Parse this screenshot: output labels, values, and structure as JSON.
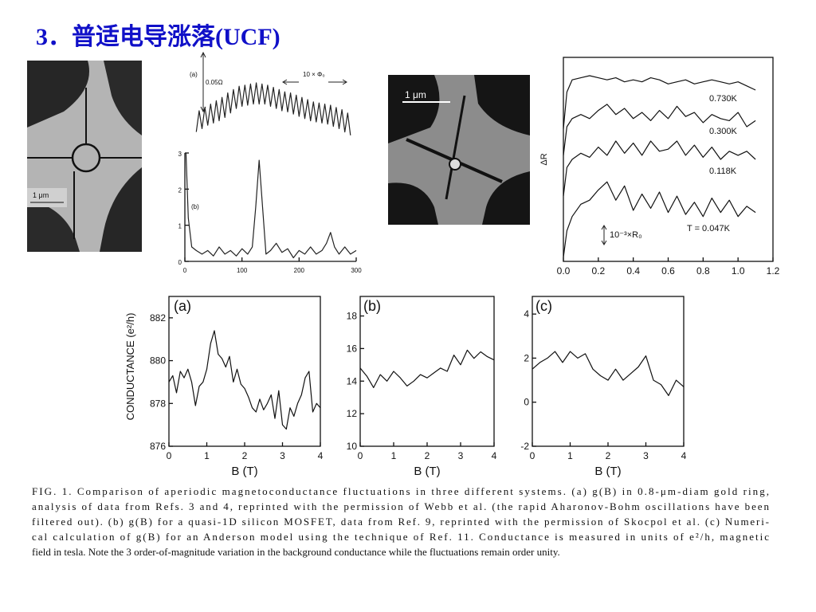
{
  "title": "3．普适电导涨落(UCF)",
  "photos": {
    "left_scale": "1 μm",
    "middle_scale": "1 μm"
  },
  "caption": [
    "FIG. 1.  Comparison of aperiodic magnetoconductance fluctuations in three different systems.  (a) g(B) in 0.8-μm-diam gold ring,",
    "analysis of data from Refs. 3 and 4, reprinted with the permission of Webb et al. (the rapid Aharonov-Bohm oscillations have been",
    "filtered out).  (b) g(B) for a quasi-1D silicon MOSFET, data from Ref. 9, reprinted with the permission of Skocpol et al.  (c) Numeri-",
    "cal calculation of g(B) for an Anderson model using the technique of Ref. 11.  Conductance is measured in units of e²/h, magnetic",
    "field in tesla.  Note the 3 order-of-magnitude variation in the background conductance while the fluctuations remain order unity."
  ],
  "chart_data": [
    {
      "type": "line",
      "title": "(a)",
      "annotations": [
        "0.05Ω",
        "10 × Φ₀"
      ],
      "color": "#222",
      "xlim": [
        0,
        300
      ],
      "ylim": [
        0,
        10
      ],
      "x": [
        20,
        25,
        30,
        35,
        40,
        45,
        50,
        55,
        60,
        65,
        70,
        75,
        80,
        85,
        90,
        95,
        100,
        105,
        110,
        115,
        120,
        125,
        130,
        135,
        140,
        145,
        150,
        155,
        160,
        165,
        170,
        175,
        180,
        185,
        190,
        195,
        200,
        205,
        210,
        215,
        220,
        225,
        230,
        235,
        240,
        245,
        250,
        255,
        260,
        265,
        270,
        275,
        280,
        285,
        290
      ],
      "values": [
        4.6,
        6.5,
        4.9,
        6.8,
        5.2,
        7.1,
        5.4,
        7.4,
        5.6,
        7.7,
        5.9,
        8.1,
        6.3,
        8.4,
        6.7,
        8.7,
        6.9,
        8.8,
        7.0,
        8.9,
        7.1,
        9.0,
        7.1,
        8.9,
        7.1,
        8.8,
        6.9,
        8.6,
        6.7,
        8.4,
        6.5,
        8.2,
        6.4,
        8.1,
        6.2,
        7.9,
        6.0,
        7.7,
        5.8,
        7.5,
        5.6,
        7.3,
        5.5,
        7.2,
        5.4,
        7.1,
        5.3,
        7.0,
        5.1,
        6.8,
        4.9,
        6.6,
        4.6,
        6.3,
        4.3
      ]
    },
    {
      "type": "line",
      "title": "(b)",
      "color": "#222",
      "xlim": [
        0,
        300
      ],
      "xticks": [
        0,
        100,
        200,
        300
      ],
      "ylim": [
        0,
        3
      ],
      "yticks": [
        0,
        1,
        2,
        3
      ],
      "x": [
        2,
        6,
        12,
        20,
        30,
        40,
        50,
        60,
        70,
        80,
        90,
        100,
        110,
        118,
        124,
        130,
        136,
        142,
        150,
        160,
        170,
        180,
        190,
        200,
        210,
        220,
        230,
        240,
        248,
        255,
        262,
        270,
        280,
        290,
        300
      ],
      "values": [
        3,
        1.2,
        0.4,
        0.3,
        0.2,
        0.3,
        0.15,
        0.4,
        0.2,
        0.3,
        0.15,
        0.35,
        0.2,
        0.4,
        1.5,
        2.8,
        1.5,
        0.2,
        0.3,
        0.5,
        0.25,
        0.35,
        0.1,
        0.3,
        0.2,
        0.4,
        0.2,
        0.3,
        0.5,
        0.8,
        0.4,
        0.2,
        0.4,
        0.2,
        0.3
      ]
    },
    {
      "type": "line",
      "y_label": "ΔR",
      "annotations": [
        "10⁻³×R₀"
      ],
      "xlim": [
        0,
        1.2
      ],
      "xticks": [
        {
          "value": 0,
          "label": "0.0"
        },
        0.2,
        0.4,
        0.6,
        0.8,
        {
          "value": 1,
          "label": "1.0"
        },
        1.2
      ],
      "ylim": [
        0,
        10
      ],
      "x": [
        0,
        0.02,
        0.05,
        0.1,
        0.15,
        0.2,
        0.25,
        0.3,
        0.35,
        0.4,
        0.45,
        0.5,
        0.55,
        0.6,
        0.65,
        0.7,
        0.75,
        0.8,
        0.85,
        0.9,
        0.95,
        1.0,
        1.05,
        1.1
      ],
      "series": [
        {
          "name": "0.730K",
          "color": "#111",
          "values": [
            6.5,
            8.3,
            8.9,
            9.0,
            9.1,
            9.0,
            8.9,
            9.0,
            8.8,
            8.9,
            8.8,
            9.0,
            8.9,
            8.7,
            8.8,
            8.9,
            8.7,
            8.8,
            8.9,
            8.8,
            8.7,
            8.8,
            8.6,
            8.4
          ]
        },
        {
          "name": "0.300K",
          "color": "#111",
          "values": [
            5.2,
            6.6,
            7.0,
            7.2,
            7.0,
            7.4,
            7.7,
            7.2,
            7.5,
            7.0,
            7.3,
            6.9,
            7.4,
            7.0,
            7.6,
            7.1,
            7.3,
            6.8,
            7.2,
            7.0,
            6.9,
            7.3,
            6.6,
            6.9
          ]
        },
        {
          "name": "0.118K",
          "color": "#111",
          "values": [
            3.2,
            4.6,
            5.0,
            5.3,
            5.1,
            5.6,
            5.2,
            5.9,
            5.3,
            5.8,
            5.2,
            5.9,
            5.4,
            5.5,
            5.9,
            5.2,
            5.7,
            5.1,
            5.6,
            5.0,
            5.4,
            5.2,
            5.4,
            5.0
          ]
        },
        {
          "name": "T = 0.047K",
          "color": "#111",
          "values": [
            0.2,
            1.5,
            2.2,
            2.8,
            3.0,
            3.5,
            3.9,
            3.0,
            3.7,
            2.5,
            3.3,
            2.6,
            3.4,
            2.4,
            3.2,
            2.3,
            2.9,
            2.2,
            3.1,
            2.4,
            3.0,
            2.2,
            2.7,
            2.4
          ]
        }
      ]
    },
    {
      "type": "line",
      "title": "(a)",
      "x_label": "B (T)",
      "y_label": "CONDUCTANCE (e²/h)",
      "color": "#111",
      "xlim": [
        0,
        4
      ],
      "xticks": [
        0,
        1,
        2,
        3,
        4
      ],
      "ylim": [
        876,
        883
      ],
      "yticks": [
        876,
        878,
        880,
        882
      ],
      "x": [
        0,
        0.1,
        0.2,
        0.3,
        0.4,
        0.5,
        0.6,
        0.7,
        0.8,
        0.9,
        1.0,
        1.1,
        1.2,
        1.3,
        1.4,
        1.5,
        1.6,
        1.7,
        1.8,
        1.9,
        2.0,
        2.1,
        2.2,
        2.3,
        2.4,
        2.5,
        2.6,
        2.7,
        2.8,
        2.9,
        3.0,
        3.1,
        3.2,
        3.3,
        3.4,
        3.5,
        3.6,
        3.7,
        3.8,
        3.9,
        4.0
      ],
      "values": [
        879.0,
        879.3,
        878.5,
        879.5,
        879.2,
        879.6,
        879.0,
        877.9,
        878.8,
        879.0,
        879.6,
        880.8,
        881.4,
        880.3,
        880.1,
        879.7,
        880.2,
        879.0,
        879.6,
        878.9,
        878.7,
        878.3,
        877.8,
        877.6,
        878.2,
        877.7,
        878.0,
        878.4,
        877.3,
        878.6,
        877.0,
        876.8,
        877.8,
        877.4,
        878.0,
        878.4,
        879.2,
        879.5,
        877.6,
        878.0,
        877.8
      ]
    },
    {
      "type": "line",
      "title": "(b)",
      "x_label": "B (T)",
      "color": "#111",
      "xlim": [
        0,
        4
      ],
      "xticks": [
        0,
        1,
        2,
        3,
        4
      ],
      "ylim": [
        10,
        19.2
      ],
      "yticks": [
        10,
        12,
        14,
        16,
        18
      ],
      "x": [
        0,
        0.2,
        0.4,
        0.6,
        0.8,
        1.0,
        1.2,
        1.4,
        1.6,
        1.8,
        2.0,
        2.2,
        2.4,
        2.6,
        2.8,
        3.0,
        3.2,
        3.4,
        3.6,
        3.8,
        4.0
      ],
      "values": [
        14.8,
        14.3,
        13.6,
        14.4,
        14.0,
        14.6,
        14.2,
        13.7,
        14.0,
        14.4,
        14.2,
        14.5,
        14.8,
        14.6,
        15.6,
        15.0,
        15.9,
        15.4,
        15.8,
        15.5,
        15.3
      ]
    },
    {
      "type": "line",
      "title": "(c)",
      "x_label": "B (T)",
      "color": "#111",
      "xlim": [
        0,
        4
      ],
      "xticks": [
        0,
        1,
        2,
        3,
        4
      ],
      "ylim": [
        -2,
        4.8
      ],
      "yticks": [
        -2,
        0,
        2,
        4
      ],
      "x": [
        0,
        0.2,
        0.4,
        0.6,
        0.8,
        1.0,
        1.2,
        1.4,
        1.6,
        1.8,
        2.0,
        2.2,
        2.4,
        2.6,
        2.8,
        3.0,
        3.2,
        3.4,
        3.6,
        3.8,
        4.0
      ],
      "values": [
        1.5,
        1.8,
        2.0,
        2.3,
        1.8,
        2.3,
        2.0,
        2.2,
        1.5,
        1.2,
        1.0,
        1.5,
        1.0,
        1.3,
        1.6,
        2.1,
        1.0,
        0.8,
        0.3,
        1.0,
        0.7
      ]
    }
  ]
}
